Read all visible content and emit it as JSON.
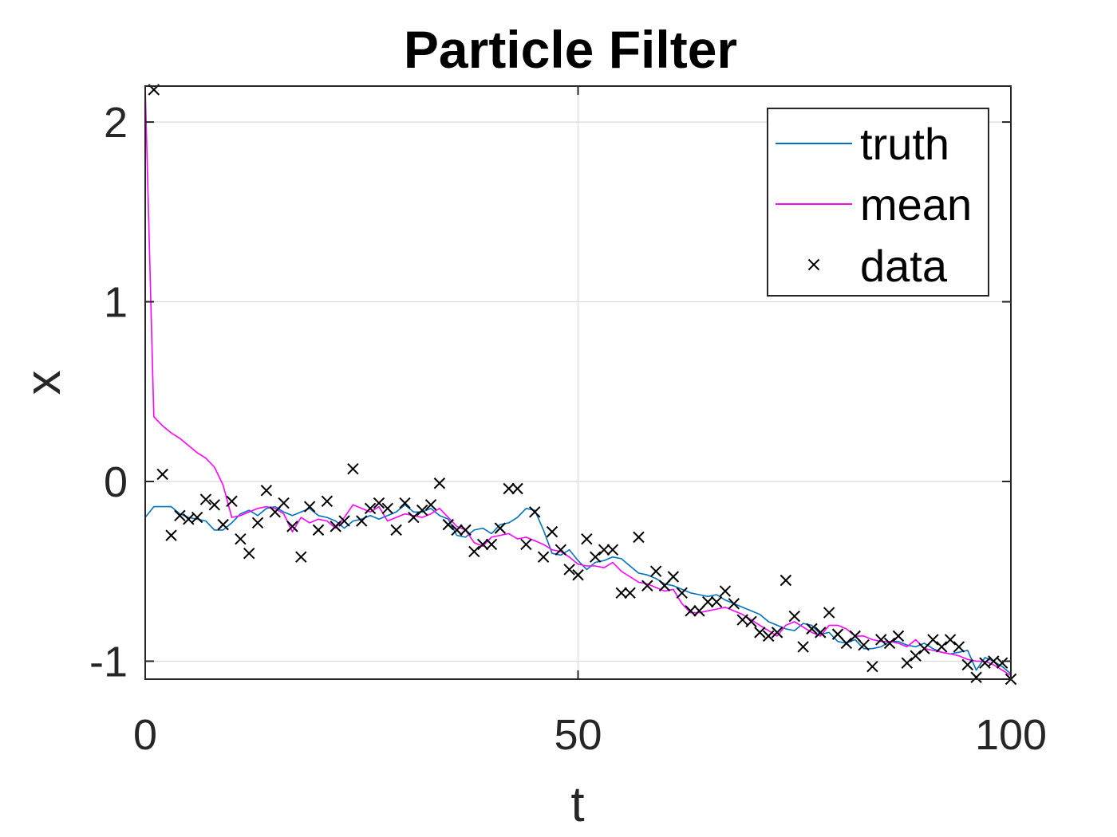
{
  "chart_data": {
    "type": "line",
    "title": "Particle Filter",
    "xlabel": "t",
    "ylabel": "x",
    "xlim": [
      0,
      100
    ],
    "ylim": [
      -1.1,
      2.2
    ],
    "xticks": [
      0,
      50,
      100
    ],
    "xtick_labels": [
      "0",
      "50",
      "100"
    ],
    "yticks": [
      -1,
      0,
      1,
      2
    ],
    "ytick_labels": [
      "-1",
      "0",
      "1",
      "2"
    ],
    "grid": true,
    "legend_position": "top-right",
    "series": [
      {
        "name": "truth",
        "kind": "line",
        "color": "#0072BD",
        "x": [
          0,
          1,
          2,
          3,
          4,
          5,
          6,
          7,
          8,
          9,
          10,
          11,
          12,
          13,
          14,
          15,
          16,
          17,
          18,
          19,
          20,
          21,
          22,
          23,
          24,
          25,
          26,
          27,
          28,
          29,
          30,
          31,
          32,
          33,
          34,
          35,
          36,
          37,
          38,
          39,
          40,
          41,
          42,
          43,
          44,
          45,
          46,
          47,
          48,
          49,
          50,
          51,
          52,
          53,
          54,
          55,
          56,
          57,
          58,
          59,
          60,
          61,
          62,
          63,
          64,
          65,
          66,
          67,
          68,
          69,
          70,
          71,
          72,
          73,
          74,
          75,
          76,
          77,
          78,
          79,
          80,
          81,
          82,
          83,
          84,
          85,
          86,
          87,
          88,
          89,
          90,
          91,
          92,
          93,
          94,
          95,
          96,
          97,
          98,
          99,
          100
        ],
        "y": [
          -0.2,
          -0.14,
          -0.14,
          -0.14,
          -0.18,
          -0.2,
          -0.21,
          -0.22,
          -0.27,
          -0.27,
          -0.23,
          -0.18,
          -0.16,
          -0.19,
          -0.15,
          -0.14,
          -0.17,
          -0.19,
          -0.17,
          -0.15,
          -0.19,
          -0.2,
          -0.22,
          -0.26,
          -0.22,
          -0.21,
          -0.19,
          -0.21,
          -0.19,
          -0.17,
          -0.13,
          -0.17,
          -0.17,
          -0.15,
          -0.19,
          -0.21,
          -0.3,
          -0.31,
          -0.27,
          -0.26,
          -0.29,
          -0.24,
          -0.23,
          -0.2,
          -0.15,
          -0.16,
          -0.27,
          -0.4,
          -0.41,
          -0.38,
          -0.44,
          -0.49,
          -0.45,
          -0.44,
          -0.42,
          -0.43,
          -0.47,
          -0.51,
          -0.52,
          -0.54,
          -0.57,
          -0.58,
          -0.6,
          -0.62,
          -0.63,
          -0.64,
          -0.63,
          -0.66,
          -0.68,
          -0.7,
          -0.72,
          -0.74,
          -0.78,
          -0.8,
          -0.82,
          -0.83,
          -0.79,
          -0.8,
          -0.85,
          -0.84,
          -0.89,
          -0.9,
          -0.88,
          -0.93,
          -0.93,
          -0.92,
          -0.89,
          -0.89,
          -0.91,
          -0.92,
          -0.9,
          -0.93,
          -0.95,
          -0.96,
          -0.95,
          -0.94,
          -1.05,
          -0.98,
          -1.0,
          -1.03,
          -1.07
        ]
      },
      {
        "name": "mean",
        "kind": "line",
        "color": "#FF00FF",
        "x": [
          0,
          1,
          2,
          3,
          4,
          5,
          6,
          7,
          8,
          9,
          10,
          11,
          12,
          13,
          14,
          15,
          16,
          17,
          18,
          19,
          20,
          21,
          22,
          23,
          24,
          25,
          26,
          27,
          28,
          29,
          30,
          31,
          32,
          33,
          34,
          35,
          36,
          37,
          38,
          39,
          40,
          41,
          42,
          43,
          44,
          45,
          46,
          47,
          48,
          49,
          50,
          51,
          52,
          53,
          54,
          55,
          56,
          57,
          58,
          59,
          60,
          61,
          62,
          63,
          64,
          65,
          66,
          67,
          68,
          69,
          70,
          71,
          72,
          73,
          74,
          75,
          76,
          77,
          78,
          79,
          80,
          81,
          82,
          83,
          84,
          85,
          86,
          87,
          88,
          89,
          90,
          91,
          92,
          93,
          94,
          95,
          96,
          97,
          98,
          99,
          100
        ],
        "y": [
          2.2,
          0.36,
          0.31,
          0.27,
          0.24,
          0.2,
          0.16,
          0.13,
          0.08,
          -0.02,
          -0.2,
          -0.19,
          -0.17,
          -0.15,
          -0.14,
          -0.15,
          -0.18,
          -0.28,
          -0.2,
          -0.23,
          -0.21,
          -0.22,
          -0.26,
          -0.2,
          -0.13,
          -0.15,
          -0.17,
          -0.14,
          -0.22,
          -0.2,
          -0.18,
          -0.19,
          -0.2,
          -0.18,
          -0.15,
          -0.2,
          -0.25,
          -0.27,
          -0.34,
          -0.36,
          -0.31,
          -0.3,
          -0.29,
          -0.32,
          -0.31,
          -0.33,
          -0.35,
          -0.38,
          -0.39,
          -0.42,
          -0.46,
          -0.47,
          -0.47,
          -0.48,
          -0.45,
          -0.5,
          -0.53,
          -0.56,
          -0.57,
          -0.59,
          -0.61,
          -0.6,
          -0.68,
          -0.73,
          -0.73,
          -0.72,
          -0.71,
          -0.7,
          -0.72,
          -0.74,
          -0.77,
          -0.8,
          -0.83,
          -0.86,
          -0.8,
          -0.78,
          -0.81,
          -0.84,
          -0.86,
          -0.8,
          -0.8,
          -0.82,
          -0.86,
          -0.86,
          -0.88,
          -0.89,
          -0.89,
          -0.9,
          -0.92,
          -0.88,
          -0.93,
          -0.94,
          -0.95,
          -0.96,
          -0.97,
          -0.99,
          -1.0,
          -1.0,
          -1.02,
          -1.05,
          -1.08
        ]
      },
      {
        "name": "data",
        "kind": "markers",
        "marker": "x",
        "color": "#000000",
        "x": [
          1,
          2,
          3,
          4,
          5,
          6,
          7,
          8,
          9,
          10,
          11,
          12,
          13,
          14,
          15,
          16,
          17,
          18,
          19,
          20,
          21,
          22,
          23,
          24,
          25,
          26,
          27,
          28,
          29,
          30,
          31,
          32,
          33,
          34,
          35,
          36,
          37,
          38,
          39,
          40,
          41,
          42,
          43,
          44,
          45,
          46,
          47,
          48,
          49,
          50,
          51,
          52,
          53,
          54,
          55,
          56,
          57,
          58,
          59,
          60,
          61,
          62,
          63,
          64,
          65,
          66,
          67,
          68,
          69,
          70,
          71,
          72,
          73,
          74,
          75,
          76,
          77,
          78,
          79,
          80,
          81,
          82,
          83,
          84,
          85,
          86,
          87,
          88,
          89,
          90,
          91,
          92,
          93,
          94,
          95,
          96,
          97,
          98,
          99,
          100
        ],
        "y": [
          2.18,
          0.04,
          -0.3,
          -0.19,
          -0.21,
          -0.2,
          -0.1,
          -0.13,
          -0.24,
          -0.11,
          -0.32,
          -0.4,
          -0.23,
          -0.05,
          -0.17,
          -0.12,
          -0.25,
          -0.42,
          -0.14,
          -0.27,
          -0.11,
          -0.25,
          -0.22,
          0.07,
          -0.22,
          -0.15,
          -0.12,
          -0.15,
          -0.27,
          -0.12,
          -0.2,
          -0.16,
          -0.13,
          -0.01,
          -0.24,
          -0.27,
          -0.27,
          -0.39,
          -0.35,
          -0.35,
          -0.26,
          -0.04,
          -0.04,
          -0.35,
          -0.17,
          -0.42,
          -0.28,
          -0.38,
          -0.49,
          -0.52,
          -0.32,
          -0.42,
          -0.38,
          -0.38,
          -0.62,
          -0.62,
          -0.31,
          -0.58,
          -0.5,
          -0.58,
          -0.53,
          -0.62,
          -0.72,
          -0.72,
          -0.67,
          -0.67,
          -0.61,
          -0.68,
          -0.77,
          -0.78,
          -0.84,
          -0.86,
          -0.84,
          -0.55,
          -0.75,
          -0.92,
          -0.82,
          -0.84,
          -0.73,
          -0.85,
          -0.9,
          -0.86,
          -0.91,
          -1.03,
          -0.88,
          -0.9,
          -0.86,
          -1.01,
          -0.97,
          -0.93,
          -0.88,
          -0.92,
          -0.88,
          -0.92,
          -1.02,
          -1.09,
          -1.01,
          -1.0,
          -1.01,
          -1.1
        ]
      }
    ]
  }
}
